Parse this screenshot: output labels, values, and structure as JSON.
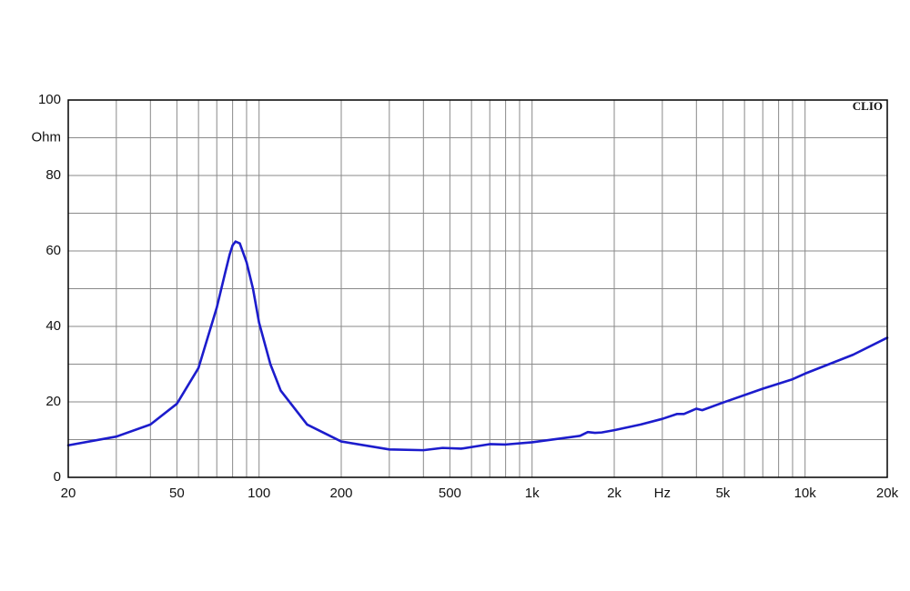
{
  "chart_data": {
    "type": "line",
    "brand": "CLIO",
    "y_label": "Ohm",
    "x_label": "Hz",
    "x": [
      20,
      30,
      40,
      50,
      60,
      70,
      75,
      78,
      80,
      82,
      85,
      90,
      95,
      100,
      110,
      120,
      150,
      200,
      300,
      400,
      470,
      550,
      700,
      800,
      1000,
      1500,
      1600,
      1700,
      1800,
      2000,
      2500,
      3000,
      3400,
      3600,
      4000,
      4200,
      5000,
      7000,
      9000,
      10000,
      15000,
      20000
    ],
    "values": [
      8.5,
      10.8,
      14,
      19.5,
      29,
      45,
      54,
      59,
      61.5,
      62.5,
      62,
      57,
      50,
      41,
      30,
      23,
      14,
      9.5,
      7.4,
      7.2,
      7.8,
      7.6,
      8.8,
      8.7,
      9.3,
      11,
      12,
      11.8,
      11.9,
      12.5,
      14,
      15.5,
      16.8,
      16.8,
      18.2,
      17.8,
      19.8,
      23.5,
      26,
      27.5,
      32.5,
      37
    ],
    "color": "#1c1ccc",
    "x_log": true,
    "xlim": [
      20,
      20000
    ],
    "ylim": [
      0,
      100
    ],
    "xticks": [
      20,
      50,
      100,
      200,
      500,
      {
        "value": 1000,
        "label": "1k"
      },
      {
        "value": 2000,
        "label": "2k"
      },
      {
        "value": 5000,
        "label": "5k"
      },
      {
        "value": 10000,
        "label": "10k"
      },
      {
        "value": 20000,
        "label": "20k"
      }
    ],
    "x_label_at": 3000,
    "x_minor_ticks": [
      30,
      40,
      60,
      70,
      80,
      90,
      300,
      400,
      600,
      700,
      800,
      900,
      3000,
      4000,
      6000,
      7000,
      8000,
      9000
    ],
    "yticks": [
      0,
      20,
      40,
      60,
      80,
      100
    ],
    "y_label_at": 90,
    "y_minor_ticks": [
      10,
      30,
      50,
      70,
      90
    ],
    "grid": true
  }
}
